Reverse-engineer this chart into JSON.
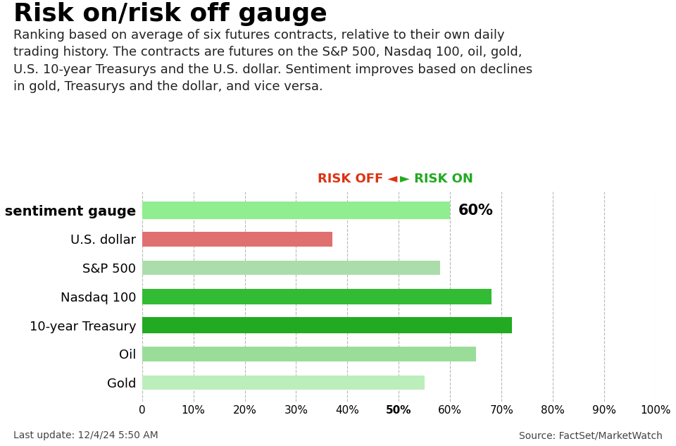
{
  "title": "Risk on/risk off gauge",
  "subtitle": "Ranking based on average of six futures contracts, relative to their own daily\ntrading history. The contracts are futures on the S&P 500, Nasdaq 100, oil, gold,\nU.S. 10-year Treasurys and the U.S. dollar. Sentiment improves based on declines\nin gold, Treasurys and the dollar, and vice versa.",
  "categories": [
    "Risk sentiment gauge",
    "U.S. dollar",
    "S&P 500",
    "Nasdaq 100",
    "10-year Treasury",
    "Oil",
    "Gold"
  ],
  "values": [
    60,
    37,
    58,
    68,
    72,
    65,
    55
  ],
  "bar_colors": [
    "#90ee90",
    "#e07070",
    "#aaddaa",
    "#33bb33",
    "#22aa22",
    "#99dd99",
    "#bbeebb"
  ],
  "risk_off_label": "RISK OFF",
  "risk_on_label": "RISK ON",
  "risk_off_color": "#dd3311",
  "risk_on_color": "#22aa22",
  "footer_left": "Last update: 12/4/24 5:50 AM",
  "footer_right": "Source: FactSet/MarketWatch",
  "xlim": [
    0,
    100
  ],
  "xlabel_ticks": [
    0,
    10,
    20,
    30,
    40,
    50,
    60,
    70,
    80,
    90,
    100
  ],
  "background_color": "#ffffff",
  "gauge_label_value": "60%",
  "title_fontsize": 26,
  "subtitle_fontsize": 13
}
